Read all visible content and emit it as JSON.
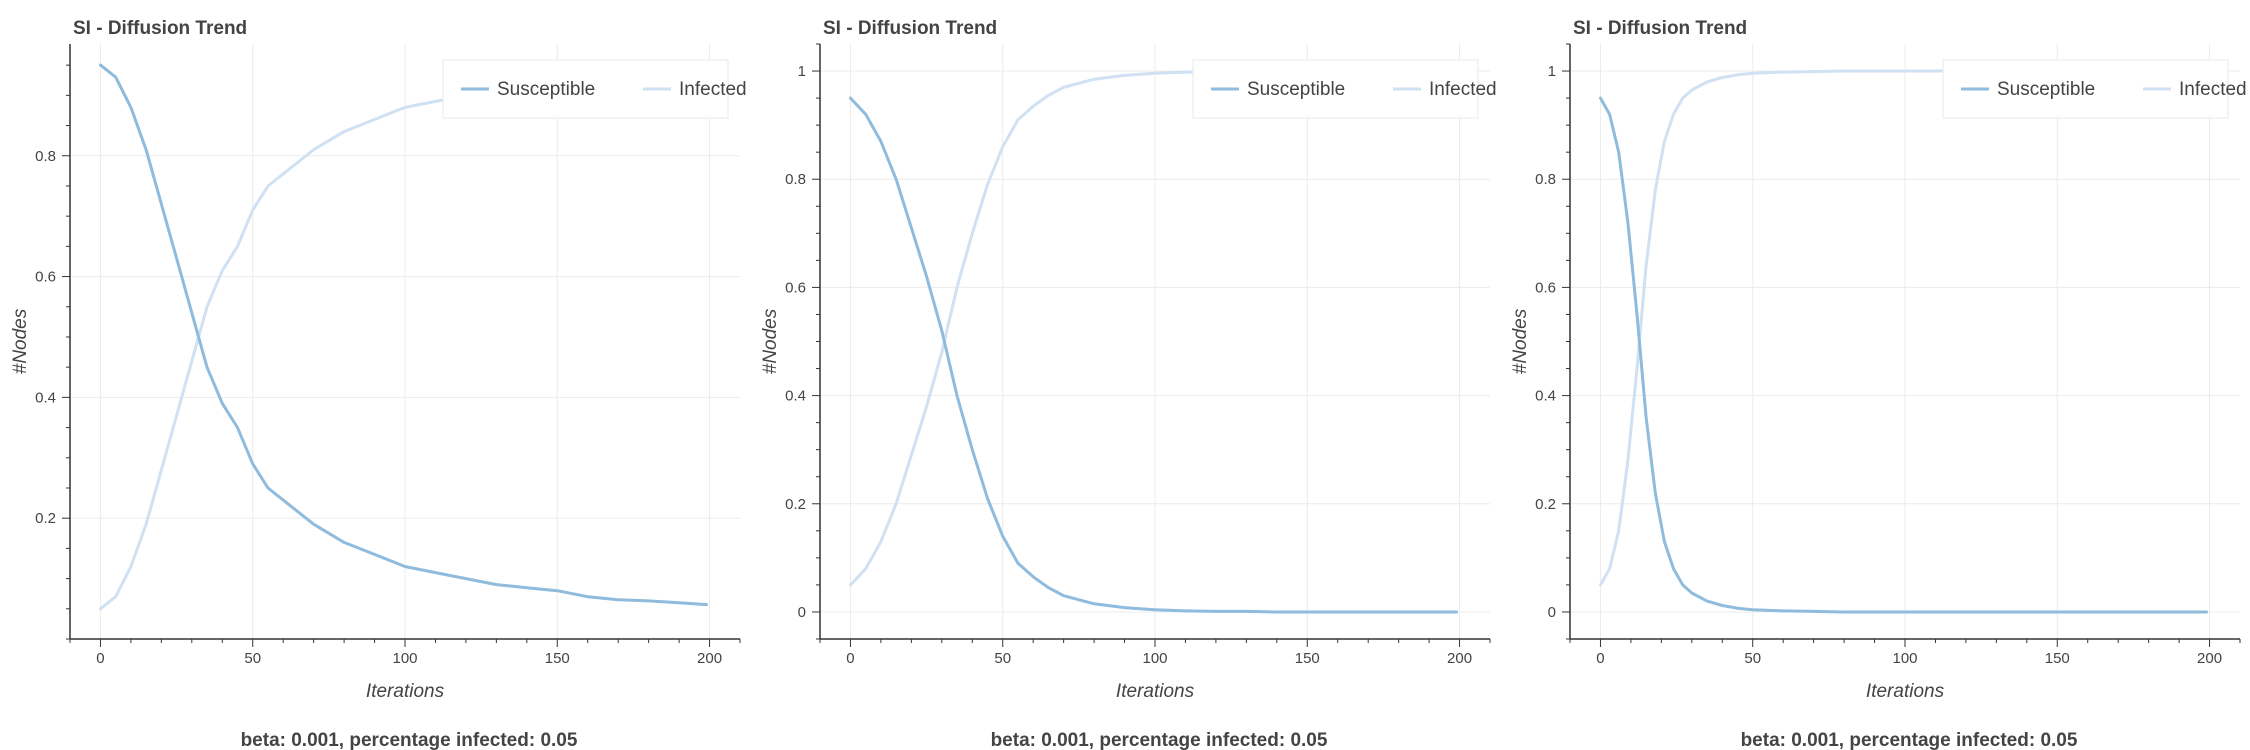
{
  "chart_data": [
    {
      "type": "line",
      "title": "SI - Diffusion Trend",
      "xlabel": "Iterations",
      "ylabel": "#Nodes",
      "caption": "beta: 0.001, percentage infected: 0.05",
      "xlim": [
        -10,
        210
      ],
      "ylim": [
        0.0,
        0.985
      ],
      "xticks": [
        0,
        50,
        100,
        150,
        200
      ],
      "yticks": [
        0.2,
        0.4,
        0.6,
        0.8
      ],
      "ytick_labels": [
        "0.2",
        "0.4",
        "0.6",
        "0.8"
      ],
      "grid": true,
      "legend_position": "top-right",
      "x": [
        0,
        5,
        10,
        15,
        20,
        25,
        30,
        35,
        40,
        45,
        50,
        55,
        60,
        70,
        80,
        90,
        100,
        110,
        120,
        130,
        140,
        150,
        160,
        170,
        180,
        190,
        199
      ],
      "series": [
        {
          "name": "Susceptible",
          "color": "#8fbbdd",
          "values": [
            0.95,
            0.93,
            0.88,
            0.81,
            0.72,
            0.63,
            0.54,
            0.45,
            0.39,
            0.35,
            0.29,
            0.25,
            0.23,
            0.19,
            0.16,
            0.14,
            0.12,
            0.11,
            0.1,
            0.09,
            0.085,
            0.08,
            0.07,
            0.065,
            0.063,
            0.06,
            0.057
          ]
        },
        {
          "name": "Infected",
          "color": "#cfe1f2",
          "values": [
            0.05,
            0.07,
            0.12,
            0.19,
            0.28,
            0.37,
            0.46,
            0.55,
            0.61,
            0.65,
            0.71,
            0.75,
            0.77,
            0.81,
            0.84,
            0.86,
            0.88,
            0.89,
            0.9,
            0.91,
            0.915,
            0.92,
            0.93,
            0.935,
            0.937,
            0.94,
            0.943
          ]
        }
      ]
    },
    {
      "type": "line",
      "title": "SI - Diffusion Trend",
      "xlabel": "Iterations",
      "ylabel": "#Nodes",
      "caption": "beta: 0.001, percentage infected: 0.05",
      "xlim": [
        -10,
        210
      ],
      "ylim": [
        -0.05,
        1.05
      ],
      "xticks": [
        0,
        50,
        100,
        150,
        200
      ],
      "yticks": [
        0,
        0.2,
        0.4,
        0.6,
        0.8,
        1
      ],
      "ytick_labels": [
        "0",
        "0.2",
        "0.4",
        "0.6",
        "0.8",
        "1"
      ],
      "grid": true,
      "legend_position": "top-right",
      "x": [
        0,
        5,
        10,
        15,
        20,
        25,
        30,
        35,
        40,
        45,
        50,
        55,
        60,
        65,
        70,
        80,
        90,
        100,
        110,
        120,
        130,
        140,
        150,
        160,
        170,
        180,
        190,
        199
      ],
      "series": [
        {
          "name": "Susceptible",
          "color": "#8fbbdd",
          "values": [
            0.95,
            0.92,
            0.87,
            0.8,
            0.71,
            0.62,
            0.52,
            0.4,
            0.3,
            0.21,
            0.14,
            0.09,
            0.065,
            0.045,
            0.03,
            0.015,
            0.008,
            0.004,
            0.002,
            0.001,
            0.001,
            0,
            0,
            0,
            0,
            0,
            0,
            0
          ]
        },
        {
          "name": "Infected",
          "color": "#cfe1f2",
          "values": [
            0.05,
            0.08,
            0.13,
            0.2,
            0.29,
            0.38,
            0.48,
            0.6,
            0.7,
            0.79,
            0.86,
            0.91,
            0.935,
            0.955,
            0.97,
            0.985,
            0.992,
            0.996,
            0.998,
            0.999,
            0.999,
            1,
            1,
            1,
            1,
            1,
            1,
            1
          ]
        }
      ]
    },
    {
      "type": "line",
      "title": "SI - Diffusion Trend",
      "xlabel": "Iterations",
      "ylabel": "#Nodes",
      "caption": "beta: 0.001, percentage infected: 0.05",
      "xlim": [
        -10,
        210
      ],
      "ylim": [
        -0.05,
        1.05
      ],
      "xticks": [
        0,
        50,
        100,
        150,
        200
      ],
      "yticks": [
        0,
        0.2,
        0.4,
        0.6,
        0.8,
        1
      ],
      "ytick_labels": [
        "0",
        "0.2",
        "0.4",
        "0.6",
        "0.8",
        "1"
      ],
      "grid": true,
      "legend_position": "top-right",
      "x": [
        0,
        3,
        6,
        9,
        12,
        15,
        18,
        21,
        24,
        27,
        30,
        35,
        40,
        45,
        50,
        60,
        70,
        80,
        100,
        120,
        150,
        180,
        199
      ],
      "series": [
        {
          "name": "Susceptible",
          "color": "#8fbbdd",
          "values": [
            0.95,
            0.92,
            0.85,
            0.72,
            0.55,
            0.36,
            0.22,
            0.13,
            0.08,
            0.05,
            0.035,
            0.02,
            0.012,
            0.007,
            0.004,
            0.002,
            0.001,
            0,
            0,
            0,
            0,
            0,
            0
          ]
        },
        {
          "name": "Infected",
          "color": "#cfe1f2",
          "values": [
            0.05,
            0.08,
            0.15,
            0.28,
            0.45,
            0.64,
            0.78,
            0.87,
            0.92,
            0.95,
            0.965,
            0.98,
            0.988,
            0.993,
            0.996,
            0.998,
            0.999,
            1,
            1,
            1,
            1,
            1,
            1
          ]
        }
      ]
    }
  ]
}
